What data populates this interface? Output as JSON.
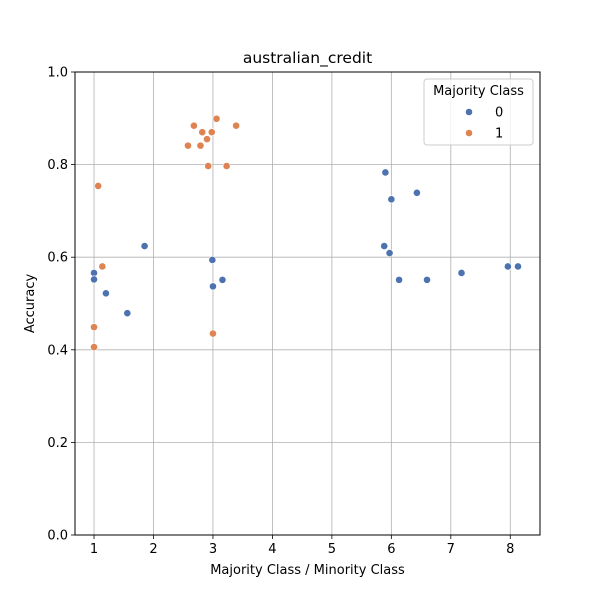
{
  "chart_data": {
    "type": "scatter",
    "title": "australian_credit",
    "xlabel": "Majority Class / Minority Class",
    "ylabel": "Accuracy",
    "xlim": [
      0.68,
      8.5
    ],
    "ylim": [
      0.0,
      1.0
    ],
    "xticks": [
      1,
      2,
      3,
      4,
      5,
      6,
      7,
      8
    ],
    "yticks": [
      0.0,
      0.2,
      0.4,
      0.6,
      0.8,
      1.0
    ],
    "xtick_labels": [
      "1",
      "2",
      "3",
      "4",
      "5",
      "6",
      "7",
      "8"
    ],
    "ytick_labels": [
      "0.0",
      "0.2",
      "0.4",
      "0.6",
      "0.8",
      "1.0"
    ],
    "grid": true,
    "legend": {
      "title": "Majority Class",
      "placement": "top-right",
      "entries": [
        "0",
        "1"
      ]
    },
    "series": [
      {
        "name": "0",
        "color": "#4c72b0",
        "x": [
          1.0,
          1.0,
          1.2,
          1.56,
          1.85,
          2.99,
          3.0,
          3.16,
          5.88,
          5.9,
          5.97,
          6.0,
          6.13,
          6.43,
          6.6,
          7.18,
          7.96,
          8.13
        ],
        "y": [
          0.566,
          0.552,
          0.522,
          0.479,
          0.624,
          0.594,
          0.537,
          0.551,
          0.624,
          0.783,
          0.609,
          0.725,
          0.551,
          0.739,
          0.551,
          0.566,
          0.58,
          0.58
        ]
      },
      {
        "name": "1",
        "color": "#dd8452",
        "x": [
          1.0,
          1.0,
          1.07,
          1.14,
          2.58,
          2.68,
          2.79,
          2.82,
          2.9,
          2.92,
          2.98,
          3.0,
          3.06,
          3.23,
          3.39
        ],
        "y": [
          0.449,
          0.406,
          0.754,
          0.58,
          0.841,
          0.884,
          0.841,
          0.87,
          0.855,
          0.797,
          0.87,
          0.435,
          0.899,
          0.797,
          0.884
        ]
      }
    ]
  }
}
